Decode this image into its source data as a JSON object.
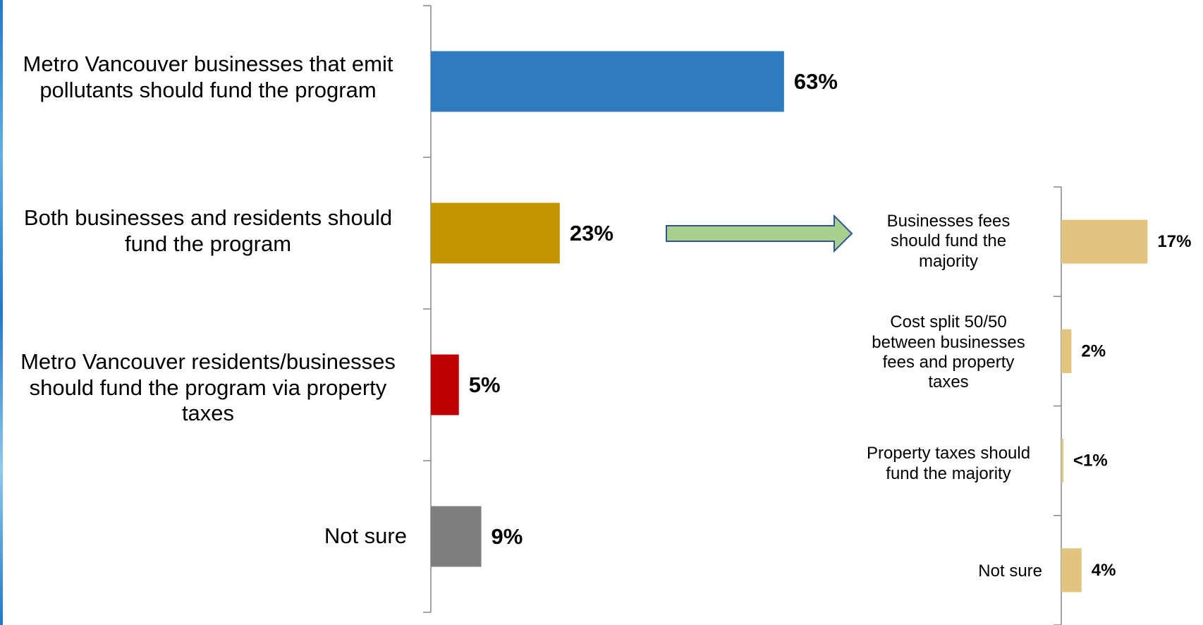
{
  "chart_data": [
    {
      "type": "bar",
      "orientation": "horizontal",
      "categories": [
        "Metro Vancouver businesses that emit pollutants should fund the program",
        "Both businesses and residents should fund the program",
        "Metro Vancouver residents/businesses should fund the program via property taxes",
        "Not sure"
      ],
      "values": [
        63,
        23,
        5,
        9
      ],
      "value_labels": [
        "63%",
        "23%",
        "5%",
        "9%"
      ],
      "colors": [
        "#2E7BBF",
        "#C49400",
        "#C00000",
        "#7F7F7F"
      ],
      "xlim": [
        0,
        100
      ],
      "grid": false,
      "legend": "none"
    },
    {
      "type": "bar",
      "orientation": "horizontal",
      "categories": [
        "Businesses fees should fund the majority",
        "Cost split 50/50 between businesses fees and property taxes",
        "Property taxes should fund the majority",
        "Not sure"
      ],
      "values": [
        17,
        2,
        0.3,
        4
      ],
      "value_labels": [
        "17%",
        "2%",
        "<1%",
        "4%"
      ],
      "colors": [
        "#E2C47F",
        "#E2C47F",
        "#E2C47F",
        "#E2C47F"
      ],
      "xlim": [
        0,
        100
      ],
      "grid": false,
      "legend": "none"
    }
  ],
  "arrow": {
    "fill": "#A8D08D",
    "stroke": "#2F5597",
    "icon": "right-arrow-icon"
  }
}
